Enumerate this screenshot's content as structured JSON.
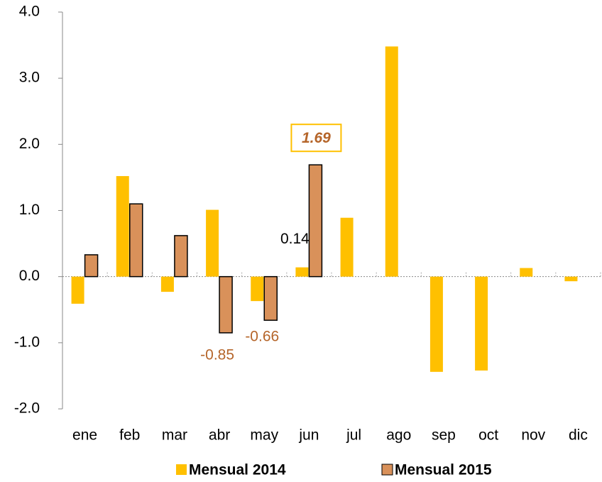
{
  "chart_data": {
    "type": "bar",
    "categories": [
      "ene",
      "feb",
      "mar",
      "abr",
      "may",
      "jun",
      "jul",
      "ago",
      "sep",
      "oct",
      "nov",
      "dic"
    ],
    "series": [
      {
        "name": "Mensual 2014",
        "color": "#ffc000",
        "values": [
          -0.41,
          1.52,
          -0.23,
          1.01,
          -0.37,
          0.14,
          0.89,
          3.48,
          -1.44,
          -1.42,
          0.13,
          -0.07
        ],
        "value_labels": [
          null,
          null,
          null,
          null,
          null,
          "0.14",
          null,
          null,
          null,
          null,
          null,
          null
        ]
      },
      {
        "name": "Mensual 2015",
        "color": "#d9915a",
        "values": [
          0.33,
          1.1,
          0.62,
          -0.85,
          -0.66,
          1.69,
          null,
          null,
          null,
          null,
          null,
          null
        ],
        "value_labels": [
          null,
          null,
          null,
          "-0.85",
          "-0.66",
          "1.69",
          null,
          null,
          null,
          null,
          null,
          null
        ]
      }
    ],
    "ylim": [
      -2,
      4
    ],
    "yticks": [
      {
        "value": -2,
        "label": "-2.0"
      },
      {
        "value": -1,
        "label": "-1.0"
      },
      {
        "value": 0,
        "label": "0.0"
      },
      {
        "value": 1,
        "label": "1.0"
      },
      {
        "value": 2,
        "label": "2.0"
      },
      {
        "value": 3,
        "label": "3.0"
      },
      {
        "value": 4,
        "label": "4.0"
      }
    ],
    "legend": "bottom"
  }
}
